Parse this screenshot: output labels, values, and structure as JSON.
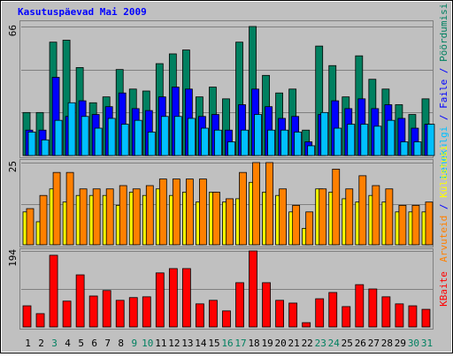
{
  "chart_data": [
    {
      "type": "bar",
      "title": "Kasutuspäevad Mai 2009",
      "categories": [
        "1",
        "2",
        "3",
        "4",
        "5",
        "6",
        "7",
        "8",
        "9",
        "10",
        "11",
        "12",
        "13",
        "14",
        "15",
        "16",
        "17",
        "18",
        "19",
        "20",
        "21",
        "22",
        "23",
        "24",
        "25",
        "26",
        "27",
        "28",
        "29",
        "30",
        "31"
      ],
      "weekends": [
        "3",
        "9",
        "10",
        "16",
        "17",
        "23",
        "24",
        "30",
        "31"
      ],
      "weekend_color": "#008060",
      "legend_separator": " / ",
      "ylim": [
        0,
        66
      ],
      "yticks": [
        66
      ],
      "grid_lines": [
        22,
        44
      ],
      "series": [
        {
          "name": "Pöördumisi",
          "color": "#008060",
          "values": [
            22,
            22,
            58,
            59,
            45,
            27,
            30,
            44,
            34,
            33,
            47,
            52,
            54,
            30,
            35,
            29,
            58,
            66,
            41,
            32,
            34,
            13,
            56,
            46,
            30,
            51,
            39,
            34,
            26,
            21,
            29
          ]
        },
        {
          "name": "Faile",
          "color": "#0000ff",
          "values": [
            13,
            13,
            40,
            20,
            28,
            21,
            25,
            32,
            24,
            23,
            30,
            35,
            34,
            20,
            21,
            13,
            26,
            34,
            25,
            19,
            20,
            7,
            21,
            28,
            24,
            29,
            24,
            26,
            19,
            14,
            16
          ]
        },
        {
          "name": "Lehekülgi",
          "color": "#00c0ff",
          "values": [
            12,
            8,
            18,
            27,
            20,
            14,
            19,
            16,
            18,
            12,
            20,
            20,
            19,
            14,
            13,
            7,
            13,
            21,
            13,
            13,
            12,
            5,
            22,
            14,
            16,
            16,
            15,
            18,
            7,
            7,
            16
          ]
        }
      ]
    },
    {
      "type": "bar",
      "ylim": [
        0,
        25
      ],
      "yticks": [
        25
      ],
      "grid_lines": [
        12.5
      ],
      "series": [
        {
          "name": "Külastusi",
          "color": "#ffff00",
          "values": [
            10,
            7,
            17,
            13,
            15,
            15,
            15,
            12,
            16,
            15,
            17,
            15,
            16,
            13,
            16,
            13,
            14,
            19,
            16,
            15,
            10,
            5,
            17,
            16,
            14,
            13,
            15,
            13,
            10,
            10,
            10
          ]
        },
        {
          "name": "Arvuteid",
          "color": "#ff8000",
          "values": [
            11,
            15,
            22,
            22,
            17,
            17,
            17,
            18,
            17,
            18,
            20,
            20,
            20,
            20,
            16,
            14,
            22,
            25,
            25,
            17,
            12,
            10,
            17,
            23,
            17,
            21,
            18,
            17,
            12,
            12,
            13
          ]
        }
      ]
    },
    {
      "type": "bar",
      "ylim": [
        0,
        194
      ],
      "yticks": [
        194
      ],
      "grid_lines": [
        97
      ],
      "series": [
        {
          "name": "KBaite",
          "color": "#ff0000",
          "values": [
            54,
            34,
            183,
            66,
            133,
            79,
            93,
            68,
            75,
            77,
            138,
            149,
            149,
            59,
            68,
            41,
            113,
            194,
            113,
            68,
            61,
            11,
            72,
            88,
            52,
            108,
            97,
            77,
            59,
            54,
            45
          ]
        }
      ]
    }
  ]
}
